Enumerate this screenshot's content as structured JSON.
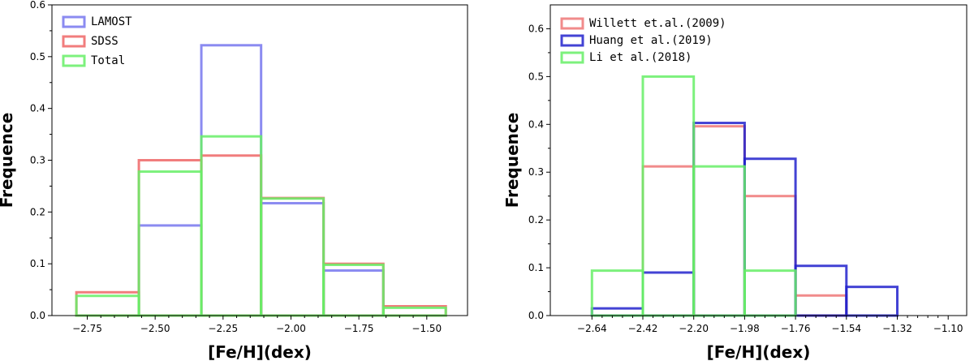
{
  "chart_data": [
    {
      "type": "bar",
      "histtype": "step",
      "xlabel": "[Fe/H](dex)",
      "ylabel": "Frequence",
      "xlim": [
        -2.88,
        -1.35
      ],
      "ylim": [
        0,
        0.6
      ],
      "xticks": [
        -2.75,
        -2.5,
        -2.25,
        -2.0,
        -1.75,
        -1.5
      ],
      "xtick_labels": [
        "−2.75",
        "−2.50",
        "−2.25",
        "−2.00",
        "−1.75",
        "−1.50"
      ],
      "yticks": [
        0.0,
        0.1,
        0.2,
        0.3,
        0.4,
        0.5,
        0.6
      ],
      "ytick_labels": [
        "0.0",
        "0.1",
        "0.2",
        "0.3",
        "0.4",
        "0.5",
        "0.6"
      ],
      "bin_edges": [
        -2.79,
        -2.56,
        -2.33,
        -2.11,
        -1.88,
        -1.66,
        -1.43
      ],
      "legend_position": "upper left",
      "series": [
        {
          "name": "LAMOST",
          "color": "#7777ee",
          "values": [
            0.0,
            0.174,
            0.522,
            0.217,
            0.087,
            0.0
          ]
        },
        {
          "name": "SDSS",
          "color": "#ee6666",
          "values": [
            0.045,
            0.3,
            0.309,
            0.227,
            0.1,
            0.018
          ]
        },
        {
          "name": "Total",
          "color": "#66ee66",
          "values": [
            0.038,
            0.278,
            0.346,
            0.226,
            0.098,
            0.015
          ]
        }
      ]
    },
    {
      "type": "bar",
      "histtype": "step",
      "xlabel": "[Fe/H](dex)",
      "ylabel": "Frequence",
      "xlim": [
        -2.82,
        -1.02
      ],
      "ylim": [
        0,
        0.65
      ],
      "xticks": [
        -2.64,
        -2.42,
        -2.2,
        -1.98,
        -1.76,
        -1.54,
        -1.32,
        -1.1
      ],
      "xtick_labels": [
        "−2.64",
        "−2.42",
        "−2.20",
        "−1.98",
        "−1.76",
        "−1.54",
        "−1.32",
        "−1.10"
      ],
      "yticks": [
        0.0,
        0.1,
        0.2,
        0.3,
        0.4,
        0.5,
        0.6
      ],
      "ytick_labels": [
        "0.0",
        "0.1",
        "0.2",
        "0.3",
        "0.4",
        "0.5",
        "0.6"
      ],
      "bin_edges": [
        -2.64,
        -2.42,
        -2.2,
        -1.98,
        -1.76,
        -1.54,
        -1.32
      ],
      "legend_position": "upper left",
      "series": [
        {
          "name": "Willett et.al.(2009)",
          "color": "#ee7777",
          "values": [
            0.0,
            0.312,
            0.396,
            0.25,
            0.042,
            0.0
          ]
        },
        {
          "name": "Huang et al.(2019)",
          "color": "#2222cc",
          "values": [
            0.015,
            0.09,
            0.403,
            0.328,
            0.104,
            0.06
          ]
        },
        {
          "name": "Li et al.(2018)",
          "color": "#66ee66",
          "values": [
            0.094,
            0.5,
            0.312,
            0.094,
            0.0,
            0.0
          ]
        }
      ]
    }
  ]
}
